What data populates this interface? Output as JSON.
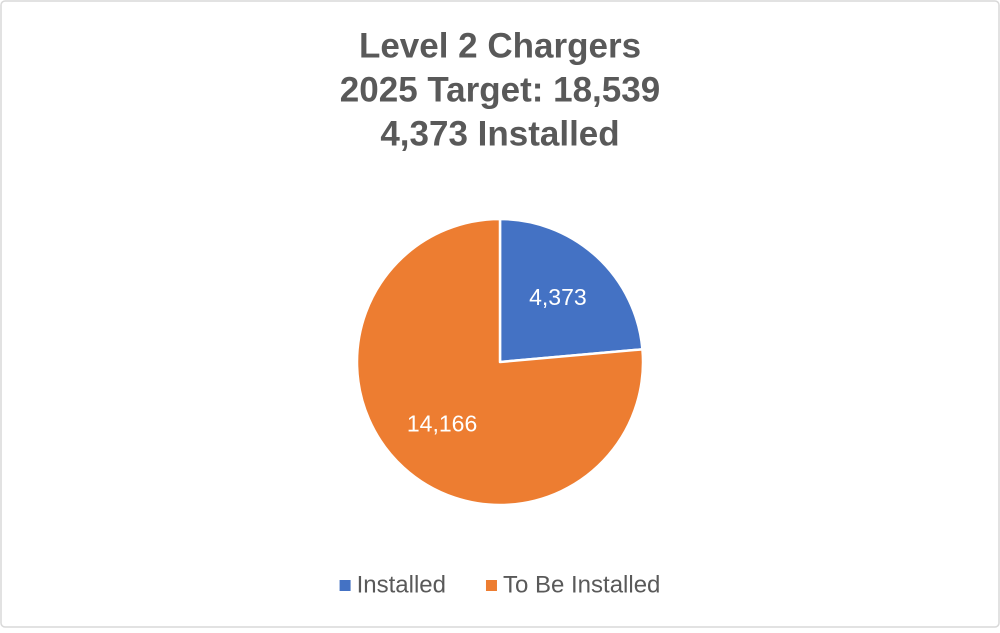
{
  "chart_data": {
    "type": "pie",
    "title": [
      "Level 2 Chargers",
      "2025 Target: 18,539",
      "4,373 Installed"
    ],
    "categories": [
      "Installed",
      "To Be Installed"
    ],
    "values": [
      4373,
      14166
    ],
    "value_labels": [
      "4,373",
      "14,166"
    ],
    "colors": [
      "#4472c4",
      "#ed7d31"
    ],
    "legend": "bottom"
  }
}
